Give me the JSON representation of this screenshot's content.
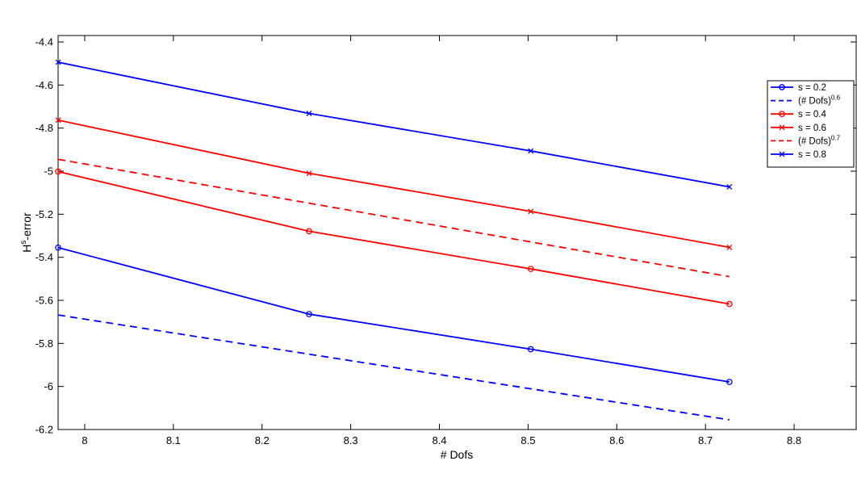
{
  "chart_data": {
    "type": "line",
    "xlabel": "# Dofs",
    "ylabel_main": "H",
    "ylabel_sup": "s",
    "ylabel_rest": "-error",
    "xlim": [
      7.97,
      8.87
    ],
    "ylim": [
      -6.2,
      -4.37
    ],
    "xticks": [
      8,
      8.1,
      8.2,
      8.3,
      8.4,
      8.5,
      8.6,
      8.7,
      8.8
    ],
    "xtick_labels": [
      "8",
      "8.1",
      "8.2",
      "8.3",
      "8.4",
      "8.5",
      "8.6",
      "8.7",
      "8.8"
    ],
    "yticks": [
      -6.2,
      -6,
      -5.8,
      -5.6,
      -5.4,
      -5.2,
      -5,
      -4.8,
      -4.6,
      -4.4
    ],
    "ytick_labels": [
      "-6.2",
      "-6",
      "-5.8",
      "-5.6",
      "-5.4",
      "-5.2",
      "-5",
      "-4.8",
      "-4.6",
      "-4.4"
    ],
    "grid": false,
    "legend_position": "top-right",
    "series": [
      {
        "name": "s = 0.2",
        "sup": "",
        "color": "#0000ff",
        "dash": false,
        "marker": "circle",
        "x": [
          7.97,
          8.253,
          8.503,
          8.727
        ],
        "y": [
          -5.355,
          -5.664,
          -5.827,
          -5.979
        ]
      },
      {
        "name": "(# Dofs)",
        "sup": "0.6",
        "color": "#0000ff",
        "dash": true,
        "marker": "none",
        "x": [
          7.97,
          8.727
        ],
        "y": [
          -5.668,
          -6.155
        ]
      },
      {
        "name": "s = 0.4",
        "sup": "",
        "color": "#ff0000",
        "dash": false,
        "marker": "circle",
        "x": [
          7.97,
          8.253,
          8.503,
          8.727
        ],
        "y": [
          -5.002,
          -5.279,
          -5.454,
          -5.617
        ]
      },
      {
        "name": "s = 0.6",
        "sup": "",
        "color": "#ff0000",
        "dash": false,
        "marker": "x",
        "x": [
          7.97,
          8.253,
          8.503,
          8.727
        ],
        "y": [
          -4.763,
          -5.01,
          -5.187,
          -5.354
        ]
      },
      {
        "name": "(# Dofs)",
        "sup": "0.7",
        "color": "#ff0000",
        "dash": true,
        "marker": "none",
        "x": [
          7.97,
          8.727
        ],
        "y": [
          -4.945,
          -5.49
        ]
      },
      {
        "name": "s = 0.8",
        "sup": "",
        "color": "#0000ff",
        "dash": false,
        "marker": "x",
        "x": [
          7.97,
          8.253,
          8.503,
          8.727
        ],
        "y": [
          -4.494,
          -4.732,
          -4.906,
          -5.073
        ]
      }
    ]
  }
}
